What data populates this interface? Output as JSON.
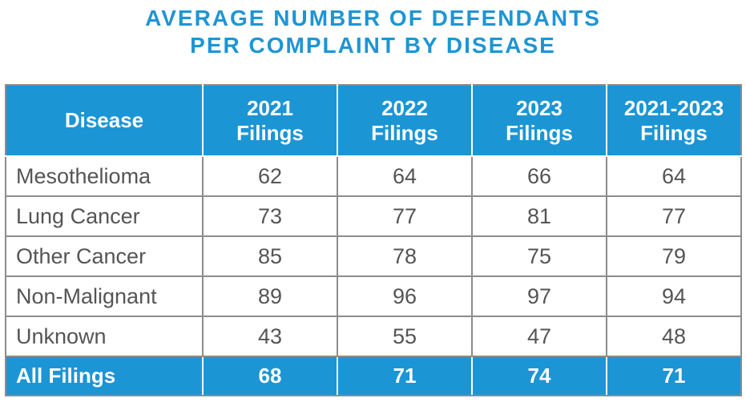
{
  "chart_data": {
    "type": "table",
    "title": "AVERAGE NUMBER OF DEFENDANTS PER COMPLAINT BY DISEASE",
    "title_lines": [
      "AVERAGE NUMBER OF DEFENDANTS",
      "PER COMPLAINT BY DISEASE"
    ],
    "columns": [
      {
        "lines": [
          "Disease"
        ]
      },
      {
        "lines": [
          "2021",
          "Filings"
        ]
      },
      {
        "lines": [
          "2022",
          "Filings"
        ]
      },
      {
        "lines": [
          "2023",
          "Filings"
        ]
      },
      {
        "lines": [
          "2021-2023",
          "Filings"
        ]
      }
    ],
    "rows": [
      {
        "label": "Mesothelioma",
        "values": [
          "62",
          "64",
          "66",
          "64"
        ]
      },
      {
        "label": "Lung Cancer",
        "values": [
          "73",
          "77",
          "81",
          "77"
        ]
      },
      {
        "label": "Other Cancer",
        "values": [
          "85",
          "78",
          "75",
          "79"
        ]
      },
      {
        "label": "Non-Malignant",
        "values": [
          "89",
          "96",
          "97",
          "94"
        ]
      },
      {
        "label": "Unknown",
        "values": [
          "43",
          "55",
          "47",
          "48"
        ]
      }
    ],
    "total": {
      "label": "All Filings",
      "values": [
        "68",
        "71",
        "74",
        "71"
      ]
    }
  },
  "colors": {
    "title": "#1e95d3",
    "header_fill": "#1c95d4",
    "body_text": "#555555",
    "border": "#8c8c8c"
  }
}
